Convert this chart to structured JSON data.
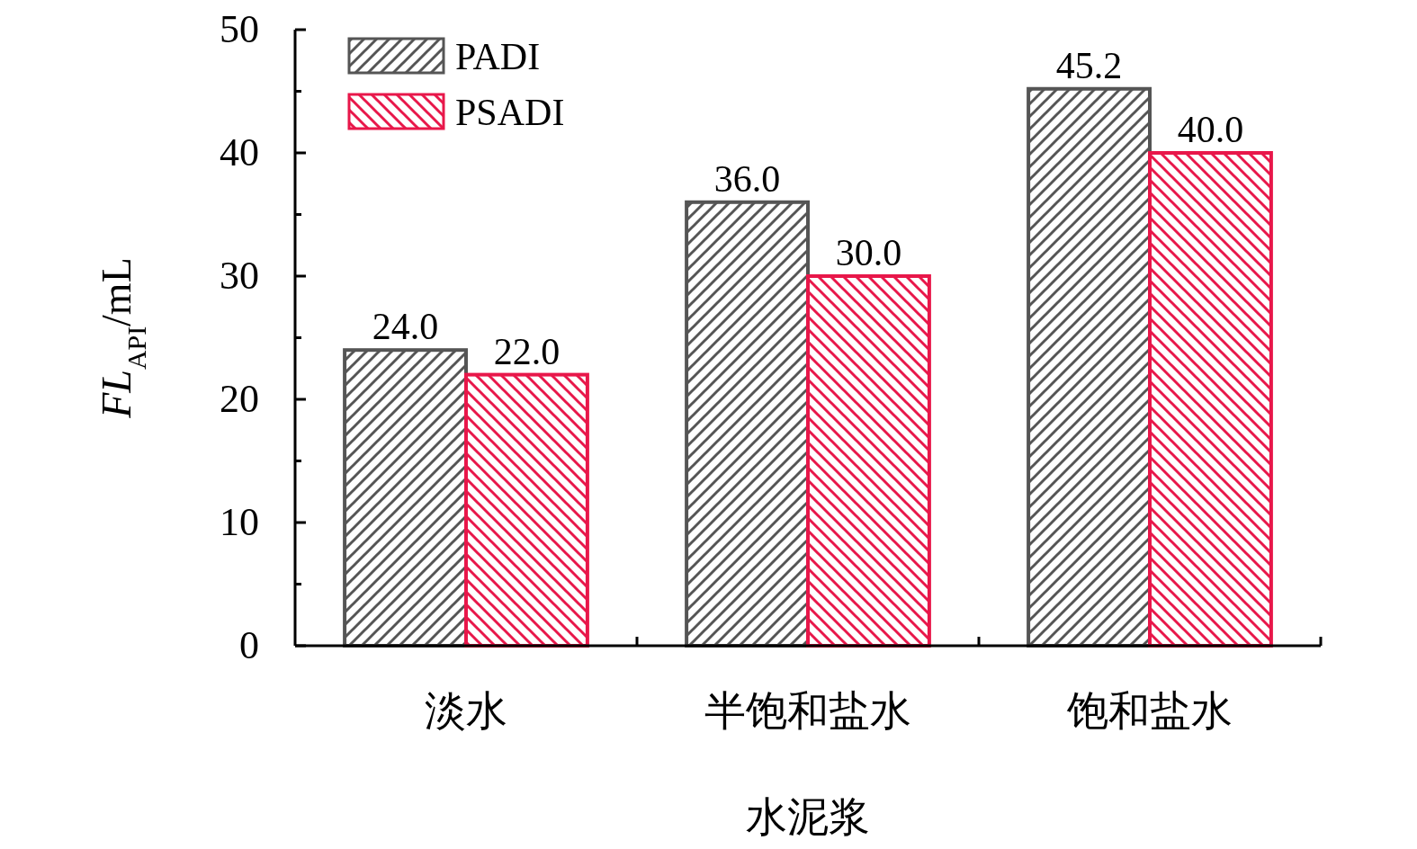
{
  "chart_data": {
    "type": "bar",
    "xlabel": "水泥浆",
    "ylabel": "FL$_{API}$/mL",
    "categories": [
      "淡水",
      "半饱和盐水",
      "饱和盐水"
    ],
    "series": [
      {
        "name": "PADI",
        "color": "#555555",
        "values": [
          24.0,
          36.0,
          45.2
        ],
        "value_labels": [
          "24.0",
          "36.0",
          "45.2"
        ]
      },
      {
        "name": "PSADI",
        "color": "#e8174a",
        "values": [
          22.0,
          30.0,
          40.0
        ],
        "value_labels": [
          "22.0",
          "30.0",
          "40.0"
        ]
      }
    ],
    "ylim": [
      0,
      50
    ],
    "yticks": [
      0,
      10,
      20,
      30,
      40,
      50
    ],
    "legend": "top left"
  }
}
